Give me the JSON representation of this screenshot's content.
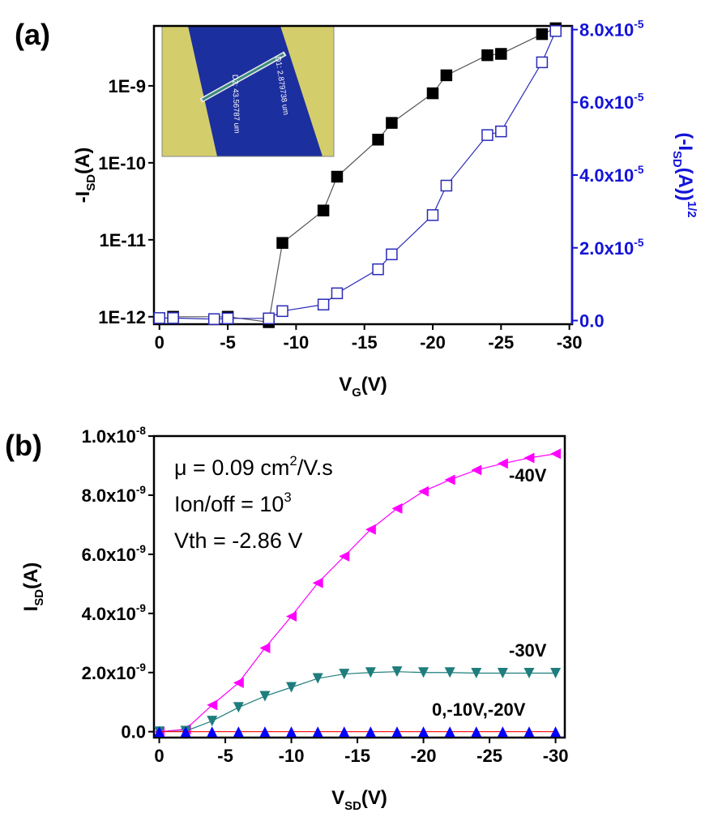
{
  "chart_data": [
    {
      "type": "line",
      "panel_label": "(a)",
      "x_label": {
        "main": "V",
        "sub": "G",
        "rest": "(V)"
      },
      "y_label": {
        "main": "-I",
        "sub": "SD",
        "rest": "(A)"
      },
      "y2_label": {
        "main": "(-I",
        "sub": "SD",
        "rest": "(A))",
        "sup": "1/2"
      },
      "xlim": [
        0.4,
        -30.2
      ],
      "xticks": [
        0,
        -5,
        -10,
        -15,
        -20,
        -25,
        -30
      ],
      "ylim": [
        8e-13,
        6e-09
      ],
      "log_y": true,
      "yticks": [
        {
          "value": 1e-12,
          "label": "1E-12"
        },
        {
          "value": 1e-11,
          "label": "1E-11"
        },
        {
          "value": 1e-10,
          "label": "1E-10"
        },
        {
          "value": 1e-09,
          "label": "1E-9"
        }
      ],
      "y2lim": [
        -1e-06,
        8.1e-05
      ],
      "y2ticks": [
        {
          "value": 0,
          "label": "0.0"
        },
        {
          "value": 2e-05,
          "label": "2.0x10",
          "exponent": "-5"
        },
        {
          "value": 4e-05,
          "label": "4.0x10",
          "exponent": "-5"
        },
        {
          "value": 6e-05,
          "label": "6.0x10",
          "exponent": "-5"
        },
        {
          "value": 8e-05,
          "label": "8.0x10",
          "exponent": "-5"
        }
      ],
      "y2_color": "#1414d8",
      "inset_labels": [
        "D1: 2.879738 um",
        "D2: 43.56787 um"
      ],
      "series": [
        {
          "color": "#000000",
          "line_color": "#555555",
          "marker": "filled-square",
          "x": [
            -1,
            -5,
            -8,
            -9,
            -12,
            -13,
            -16,
            -17,
            -20,
            -21,
            -24,
            -25,
            -28,
            -29
          ],
          "values": [
            1e-12,
            1e-12,
            8.5e-13,
            9.1e-12,
            2.4e-11,
            6.6e-11,
            2e-10,
            3.3e-10,
            8e-10,
            1.37e-09,
            2.5e-09,
            2.6e-09,
            4.7e-09,
            5.6e-09
          ]
        },
        {
          "color": "#2a2ab8",
          "line_color": "#2a2ab8",
          "marker": "open-square",
          "axis": "y2",
          "x": [
            0,
            -1,
            -4,
            -5,
            -8,
            -9,
            -12,
            -13,
            -16,
            -17,
            -20,
            -21,
            -24,
            -25,
            -28,
            -29
          ],
          "values": [
            7e-07,
            7e-07,
            4e-07,
            6e-07,
            6e-07,
            2.6e-06,
            4.4e-06,
            7.5e-06,
            1.41e-05,
            1.82e-05,
            2.9e-05,
            3.71e-05,
            5.1e-05,
            5.2e-05,
            7.1e-05,
            7.96e-05
          ]
        }
      ]
    },
    {
      "type": "line",
      "panel_label": "(b)",
      "x_label": {
        "main": "V",
        "sub": "SD",
        "rest": "(V)"
      },
      "y_label": {
        "main": "I",
        "sub": "SD",
        "rest": "(A)"
      },
      "xlim": [
        0.4,
        -30.7
      ],
      "xticks": [
        0,
        -5,
        -10,
        -15,
        -20,
        -25,
        -30
      ],
      "ylim": [
        -2e-10,
        1e-08
      ],
      "yticks": [
        {
          "value": 0,
          "label": "0.0"
        },
        {
          "value": 2e-09,
          "label": "2.0x10",
          "exponent": "-9"
        },
        {
          "value": 4e-09,
          "label": "4.0x10",
          "exponent": "-9"
        },
        {
          "value": 6e-09,
          "label": "6.0x10",
          "exponent": "-9"
        },
        {
          "value": 8e-09,
          "label": "8.0x10",
          "exponent": "-9"
        },
        {
          "value": 1e-08,
          "label": "1.0x10",
          "exponent": "-8"
        }
      ],
      "annotations": [
        {
          "main": "μ = 0.09 cm",
          "sup": "2",
          "rest": "/V.s"
        },
        {
          "main": "Ion/off = 10",
          "sup": "3"
        },
        {
          "main": "Vth = -2.86 V"
        }
      ],
      "x": [
        0,
        -2,
        -4,
        -6,
        -8,
        -10,
        -12,
        -14,
        -16,
        -18,
        -20,
        -22,
        -24,
        -26,
        -28,
        -30
      ],
      "series": [
        {
          "name": "-40V",
          "color": "#ff00ff",
          "line_color": "#ff00ff",
          "marker": "left-triangle",
          "values": [
            0,
            8e-11,
            9e-10,
            1.65e-09,
            2.83e-09,
            3.9e-09,
            5.03e-09,
            5.93e-09,
            6.84e-09,
            7.55e-09,
            8.13e-09,
            8.52e-09,
            8.85e-09,
            9.07e-09,
            9.26e-09,
            9.4e-09
          ]
        },
        {
          "name": "-30V",
          "color": "#1f7d7d",
          "line_color": "#1f7d7d",
          "marker": "down-triangle",
          "values": [
            0,
            2e-11,
            3.6e-10,
            8.2e-10,
            1.2e-09,
            1.5e-09,
            1.8e-09,
            1.95e-09,
            2e-09,
            2.03e-09,
            2e-09,
            2e-09,
            1.98e-09,
            1.98e-09,
            1.98e-09,
            1.98e-09
          ]
        },
        {
          "name": "0,-10V,-20V",
          "color": "#0000ff",
          "line_color": "#ff0000",
          "marker": "up-triangle",
          "values": [
            0,
            0,
            0,
            0,
            0,
            0,
            0,
            0,
            0,
            0,
            0,
            0,
            0,
            0,
            0,
            0
          ]
        }
      ]
    }
  ]
}
